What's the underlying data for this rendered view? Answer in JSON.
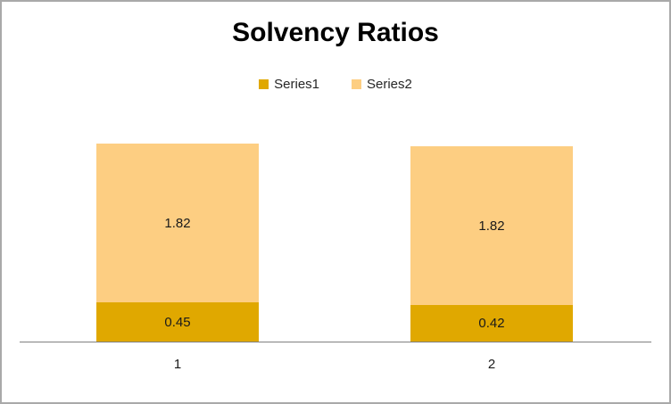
{
  "chart_data": {
    "type": "bar",
    "stacked": true,
    "title": "Solvency Ratios",
    "categories": [
      "1",
      "2"
    ],
    "series": [
      {
        "name": "Series1",
        "color": "#e0a800",
        "values": [
          0.45,
          0.42
        ]
      },
      {
        "name": "Series2",
        "color": "#fdce82",
        "values": [
          1.82,
          1.82
        ]
      }
    ],
    "value_labels_shown": true,
    "value_label_format": "0.00",
    "xlabel": "",
    "ylabel": "",
    "ylim": [
      0,
      2.4
    ],
    "gridlines": false,
    "legend_position": "top-center",
    "axis_line_color": "#808080",
    "value_label_color": "#1a1a1a",
    "tick_label_color": "#1a1a1a",
    "title_color": "#000000",
    "background_color": "#ffffff",
    "border_color": "#a9a9a9"
  }
}
